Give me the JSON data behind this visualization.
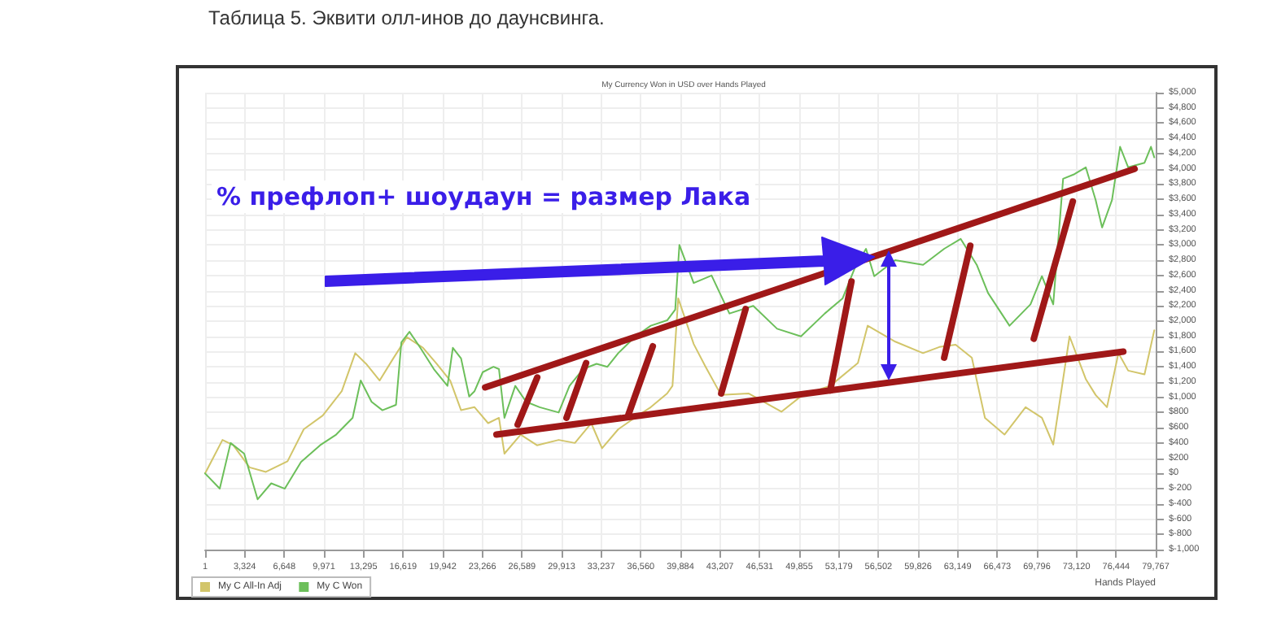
{
  "chart_data": {
    "type": "line",
    "title": "My Currency Won in USD over Hands Played",
    "xlabel": "Hands Played",
    "annotations": [
      "Таблица 5. Эквити олл-инов до даунсвинга.",
      "% префлоп+ шоудаун = размер Лака"
    ],
    "xlim": [
      1,
      79767
    ],
    "xticks": [
      {
        "value": 1,
        "label": "1"
      },
      {
        "value": 3324,
        "label": "3,324"
      },
      {
        "value": 6648,
        "label": "6,648"
      },
      {
        "value": 9971,
        "label": "9,971"
      },
      {
        "value": 13295,
        "label": "13,295"
      },
      {
        "value": 16619,
        "label": "16,619"
      },
      {
        "value": 19942,
        "label": "19,942"
      },
      {
        "value": 23266,
        "label": "23,266"
      },
      {
        "value": 26589,
        "label": "26,589"
      },
      {
        "value": 29913,
        "label": "29,913"
      },
      {
        "value": 33237,
        "label": "33,237"
      },
      {
        "value": 36560,
        "label": "36,560"
      },
      {
        "value": 39884,
        "label": "39,884"
      },
      {
        "value": 43207,
        "label": "43,207"
      },
      {
        "value": 46531,
        "label": "46,531"
      },
      {
        "value": 49855,
        "label": "49,855"
      },
      {
        "value": 53179,
        "label": "53,179"
      },
      {
        "value": 56502,
        "label": "56,502"
      },
      {
        "value": 59826,
        "label": "59,826"
      },
      {
        "value": 63149,
        "label": "63,149"
      },
      {
        "value": 66473,
        "label": "66,473"
      },
      {
        "value": 69796,
        "label": "69,796"
      },
      {
        "value": 73120,
        "label": "73,120"
      },
      {
        "value": 76444,
        "label": "76,444"
      },
      {
        "value": 79767,
        "label": "79,767"
      }
    ],
    "ylim": [
      -1000,
      5000
    ],
    "yticks": [
      {
        "value": -1000,
        "label": "$-1,000"
      },
      {
        "value": -800,
        "label": "$-800"
      },
      {
        "value": -600,
        "label": "$-600"
      },
      {
        "value": -400,
        "label": "$-400"
      },
      {
        "value": -200,
        "label": "$-200"
      },
      {
        "value": 0,
        "label": "$0"
      },
      {
        "value": 200,
        "label": "$200"
      },
      {
        "value": 400,
        "label": "$400"
      },
      {
        "value": 600,
        "label": "$600"
      },
      {
        "value": 800,
        "label": "$800"
      },
      {
        "value": 1000,
        "label": "$1,000"
      },
      {
        "value": 1200,
        "label": "$1,200"
      },
      {
        "value": 1400,
        "label": "$1,400"
      },
      {
        "value": 1600,
        "label": "$1,600"
      },
      {
        "value": 1800,
        "label": "$1,800"
      },
      {
        "value": 2000,
        "label": "$2,000"
      },
      {
        "value": 2200,
        "label": "$2,200"
      },
      {
        "value": 2400,
        "label": "$2,400"
      },
      {
        "value": 2600,
        "label": "$2,600"
      },
      {
        "value": 2800,
        "label": "$2,800"
      },
      {
        "value": 3000,
        "label": "$3,000"
      },
      {
        "value": 3200,
        "label": "$3,200"
      },
      {
        "value": 3400,
        "label": "$3,400"
      },
      {
        "value": 3600,
        "label": "$3,600"
      },
      {
        "value": 3800,
        "label": "$3,800"
      },
      {
        "value": 4000,
        "label": "$4,000"
      },
      {
        "value": 4200,
        "label": "$4,200"
      },
      {
        "value": 4400,
        "label": "$4,400"
      },
      {
        "value": 4600,
        "label": "$4,600"
      },
      {
        "value": 4800,
        "label": "$4,800"
      },
      {
        "value": 5000,
        "label": "$5,000"
      }
    ],
    "grid": true,
    "legend": "bottom left",
    "marker": "none",
    "series": [
      {
        "name": "My C All-In Adj",
        "color": "#d2c56a",
        "x": [
          1,
          1460,
          2370,
          3730,
          5100,
          6920,
          8280,
          9870,
          11470,
          12600,
          13510,
          14650,
          15790,
          16930,
          18290,
          19430,
          20570,
          21480,
          22610,
          23750,
          24660,
          25120,
          26480,
          27850,
          29670,
          31030,
          32400,
          33310,
          34670,
          36040,
          37400,
          38770,
          39220,
          39700,
          41000,
          42000,
          43300,
          45600,
          48360,
          50140,
          52460,
          54780,
          55600,
          57920,
          60240,
          61610,
          62980,
          64340,
          65440,
          67080,
          68850,
          70220,
          71170,
          72540,
          73900,
          74730,
          75680,
          76640,
          77460,
          78830,
          79650
        ],
        "values": [
          0,
          440,
          370,
          80,
          20,
          160,
          580,
          760,
          1080,
          1580,
          1440,
          1220,
          1510,
          1790,
          1650,
          1440,
          1220,
          830,
          870,
          660,
          730,
          260,
          510,
          370,
          440,
          400,
          660,
          330,
          580,
          730,
          870,
          1050,
          1150,
          2300,
          1700,
          1400,
          1030,
          1050,
          810,
          1030,
          1150,
          1450,
          1940,
          1730,
          1580,
          1660,
          1690,
          1520,
          730,
          510,
          870,
          730,
          380,
          1800,
          1240,
          1030,
          870,
          1580,
          1350,
          1300,
          1880
        ]
      },
      {
        "name": "My C Won",
        "color": "#6cbf5a",
        "x": [
          1,
          1230,
          2140,
          3280,
          4410,
          5550,
          6690,
          8050,
          9650,
          11000,
          12380,
          13060,
          13970,
          14880,
          16020,
          16470,
          17150,
          18060,
          19200,
          20340,
          20790,
          21480,
          22160,
          22610,
          23300,
          24200,
          24660,
          25120,
          26030,
          26940,
          28070,
          29670,
          30580,
          31710,
          32850,
          33760,
          34670,
          36040,
          37400,
          38770,
          39450,
          39800,
          41000,
          42500,
          44000,
          46000,
          48000,
          50000,
          52000,
          53500,
          54500,
          55460,
          56150,
          57900,
          60250,
          62020,
          63400,
          64750,
          65700,
          67500,
          69260,
          70220,
          71170,
          72000,
          72950,
          73900,
          74730,
          75270,
          76100,
          76780,
          77460,
          78830,
          79370,
          79650
        ],
        "values": [
          0,
          -200,
          400,
          260,
          -340,
          -130,
          -200,
          150,
          370,
          510,
          730,
          1220,
          940,
          830,
          900,
          1720,
          1860,
          1650,
          1370,
          1150,
          1650,
          1510,
          1010,
          1080,
          1330,
          1400,
          1370,
          730,
          1150,
          940,
          870,
          800,
          1150,
          1370,
          1440,
          1400,
          1580,
          1790,
          1940,
          2010,
          2150,
          3000,
          2500,
          2600,
          2100,
          2200,
          1900,
          1800,
          2100,
          2300,
          2690,
          2950,
          2590,
          2800,
          2740,
          2950,
          3080,
          2740,
          2370,
          1940,
          2220,
          2590,
          2220,
          3870,
          3930,
          4020,
          3590,
          3230,
          3590,
          4290,
          4020,
          4080,
          4290,
          4150
        ]
      },
      {
        "color": "#a01818",
        "x": [
          23500,
          78000
        ],
        "values": [
          1130,
          4000
        ]
      },
      {
        "color": "#a01818",
        "x": [
          24450,
          77050
        ],
        "values": [
          510,
          1600
        ]
      },
      {
        "color": "#a01818",
        "x": [
          26230,
          27870
        ],
        "values": [
          640,
          1260
        ]
      },
      {
        "color": "#a01818",
        "x": [
          30330,
          31970
        ],
        "values": [
          730,
          1450
        ]
      },
      {
        "color": "#a01818",
        "x": [
          35520,
          37570
        ],
        "values": [
          770,
          1670
        ]
      },
      {
        "color": "#a01818",
        "x": [
          43310,
          45360
        ],
        "values": [
          1050,
          2160
        ]
      },
      {
        "color": "#a01818",
        "x": [
          52460,
          54240
        ],
        "values": [
          1090,
          2520
        ]
      },
      {
        "color": "#a01818",
        "x": [
          62020,
          64210
        ],
        "values": [
          1520,
          2990
        ]
      },
      {
        "color": "#a01818",
        "x": [
          69540,
          72810
        ],
        "values": [
          1770,
          3570
        ]
      }
    ]
  }
}
